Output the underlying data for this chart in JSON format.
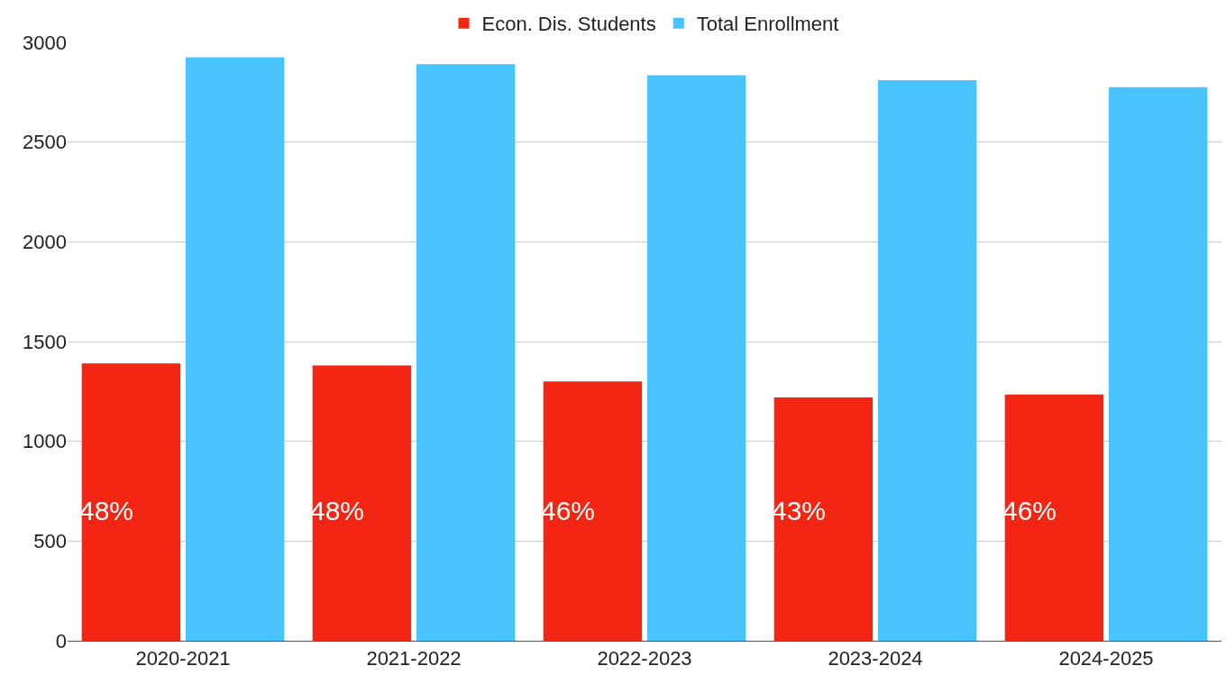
{
  "chart_data": {
    "type": "bar",
    "categories": [
      "2020-2021",
      "2021-2022",
      "2022-2023",
      "2023-2024",
      "2024-2025"
    ],
    "series": [
      {
        "name": "Econ. Dis. Students",
        "color": "#f22613",
        "values": [
          1390,
          1380,
          1300,
          1220,
          1235
        ]
      },
      {
        "name": "Total Enrollment",
        "color": "#48c3fd",
        "values": [
          2925,
          2890,
          2835,
          2810,
          2775
        ]
      }
    ],
    "ylim": [
      0,
      3000
    ],
    "yticks": [
      0,
      500,
      1000,
      1500,
      2000,
      2500,
      3000
    ],
    "annotations": [
      "48%",
      "48%",
      "46%",
      "43%",
      "46%"
    ],
    "grid": "y",
    "legend": "top"
  }
}
